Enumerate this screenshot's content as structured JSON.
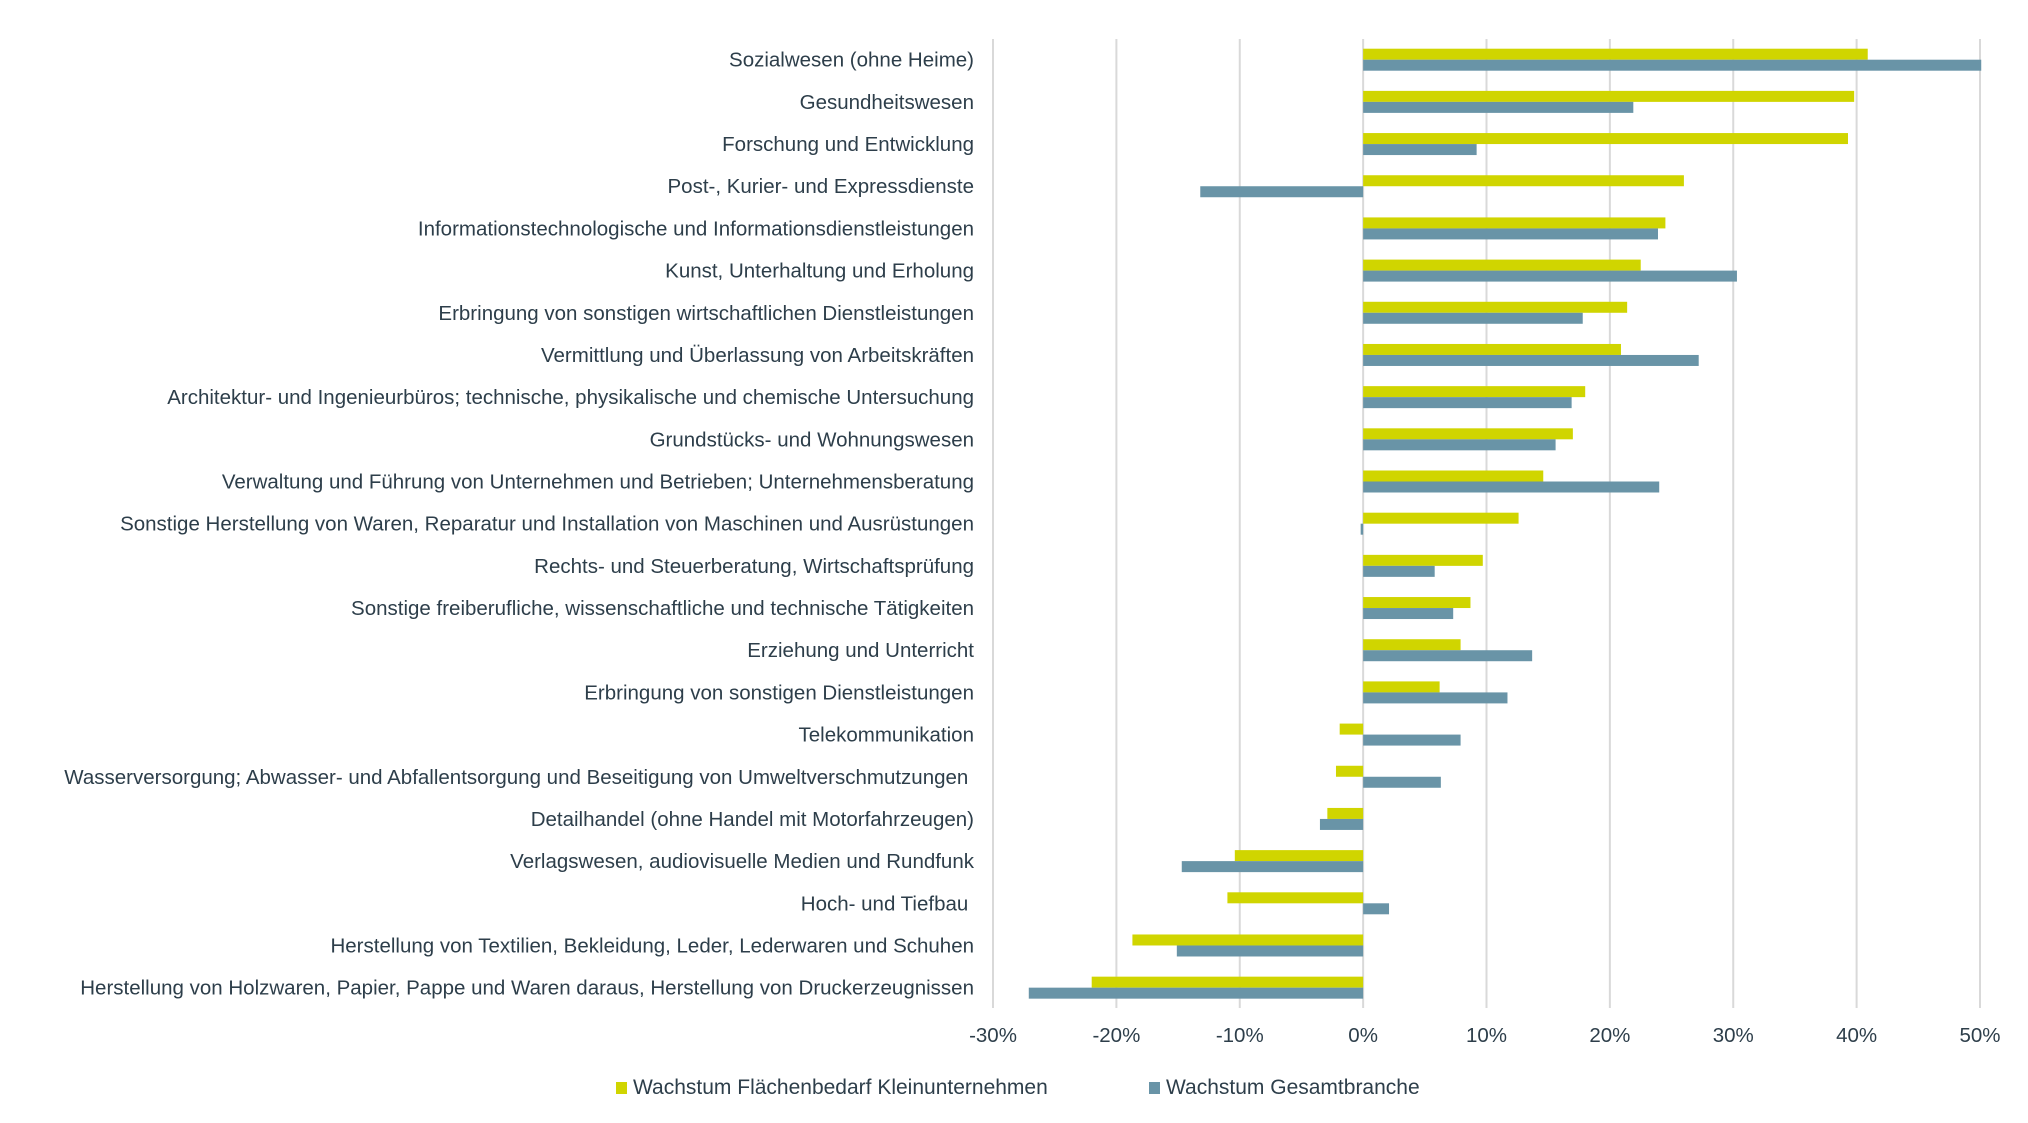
{
  "chart_data": {
    "type": "bar",
    "orientation": "horizontal",
    "title": "",
    "xlabel": "",
    "ylabel": "",
    "xlim": [
      -30,
      50
    ],
    "x_ticks": [
      -30,
      -20,
      -10,
      0,
      10,
      20,
      30,
      40,
      50
    ],
    "x_tick_labels": [
      "-30%",
      "-20%",
      "-10%",
      "0%",
      "10%",
      "20%",
      "30%",
      "40%",
      "50%"
    ],
    "grid": "vertical",
    "legend_position": "bottom",
    "categories": [
      "Sozialwesen (ohne Heime)",
      "Gesundheitswesen",
      "Forschung und Entwicklung",
      "Post-, Kurier- und Expressdienste",
      "Informationstechnologische und Informationsdienstleistungen",
      "Kunst, Unterhaltung und Erholung",
      "Erbringung von sonstigen wirtschaftlichen Dienstleistungen",
      "Vermittlung und Überlassung von Arbeitskräften",
      "Architektur- und Ingenieurbüros; technische, physikalische und chemische Untersuchung",
      "Grundstücks- und Wohnungswesen",
      "Verwaltung und Führung von Unternehmen und Betrieben; Unternehmensberatung",
      "Sonstige Herstellung von Waren, Reparatur und Installation von Maschinen und Ausrüstungen",
      "Rechts- und Steuerberatung, Wirtschaftsprüfung",
      "Sonstige freiberufliche, wissenschaftliche und technische Tätigkeiten",
      "Erziehung und Unterricht",
      "Erbringung von sonstigen Dienstleistungen",
      "Telekommunikation",
      "Wasserversorgung; Abwasser- und Abfallentsorgung und Beseitigung von Umweltverschmutzungen ",
      "Detailhandel (ohne Handel mit Motorfahrzeugen)",
      "Verlagswesen, audiovisuelle Medien und Rundfunk",
      "Hoch- und Tiefbau ",
      "Herstellung von Textilien, Bekleidung, Leder, Lederwaren und Schuhen",
      "Herstellung von Holzwaren, Papier, Pappe und Waren daraus, Herstellung von Druckerzeugnissen"
    ],
    "series": [
      {
        "name": "Wachstum Flächenbedarf Kleinunternehmen",
        "color": "#d0d500",
        "values": [
          40.9,
          39.8,
          39.3,
          26.0,
          24.5,
          22.5,
          21.4,
          20.9,
          18.0,
          17.0,
          14.6,
          12.6,
          9.7,
          8.7,
          7.9,
          6.2,
          -1.9,
          -2.2,
          -2.9,
          -10.4,
          -11.0,
          -18.7,
          -22.0
        ]
      },
      {
        "name": "Wachstum Gesamtbranche",
        "color": "#6994a7",
        "values": [
          50.1,
          21.9,
          9.2,
          -13.2,
          23.9,
          30.3,
          17.8,
          27.2,
          16.9,
          15.6,
          24.0,
          -0.2,
          5.8,
          7.3,
          13.7,
          11.7,
          7.9,
          6.3,
          -3.5,
          -14.7,
          2.1,
          -15.1,
          -27.1
        ]
      }
    ]
  },
  "colors": {
    "text": "#2d3e4a",
    "grid": "#d9d9d9"
  }
}
